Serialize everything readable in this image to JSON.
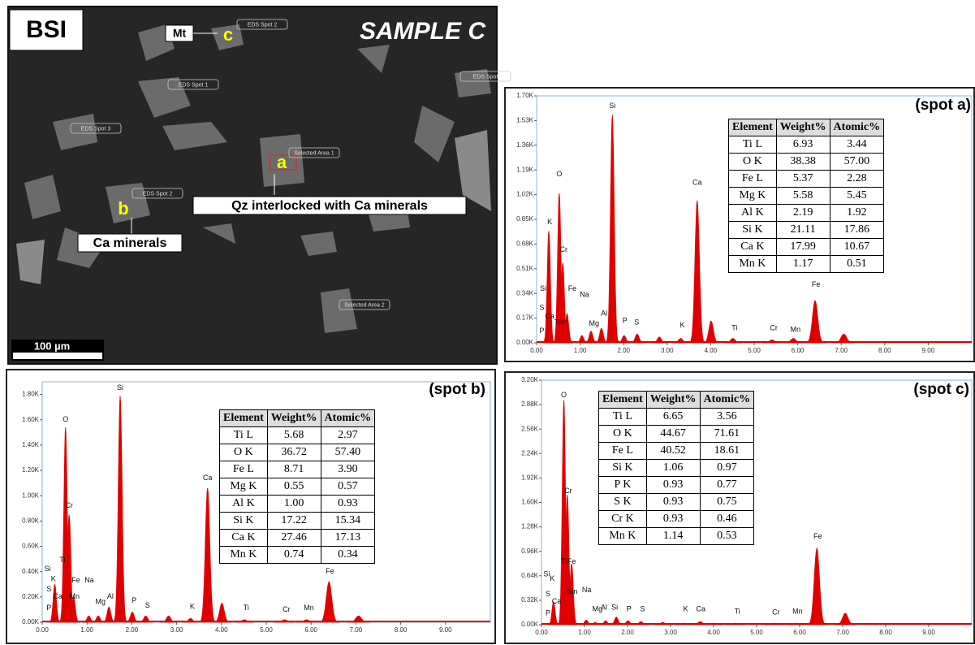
{
  "image": {
    "label": "BSI",
    "sample": "SAMPLE C",
    "mt": "Mt",
    "spot_a": "a",
    "spot_b": "b",
    "spot_c": "c",
    "desc_a": "Qz interlocked with Ca minerals",
    "desc_b": "Ca minerals",
    "scale_bar": "100 µm",
    "tags": [
      "EDS Spot 2",
      "EDS Spot 1",
      "EDS Spot 3",
      "Selected Area 1",
      "EDS Spot 2",
      "Selected Area 2",
      "EDS Spot"
    ]
  },
  "chart_data": [
    {
      "type": "spectrum",
      "title": "(spot a)",
      "color": "#e00000",
      "x": [
        0.28,
        0.52,
        0.6,
        0.7,
        1.04,
        1.25,
        1.49,
        1.74,
        2.01,
        2.31,
        2.82,
        3.31,
        3.69,
        4.01,
        4.51,
        5.41,
        5.9,
        6.4,
        7.06
      ],
      "values": [
        0.77,
        1.03,
        0.55,
        0.2,
        0.05,
        0.08,
        0.1,
        1.57,
        0.05,
        0.06,
        0.04,
        0.03,
        0.98,
        0.15,
        0.03,
        0.02,
        0.03,
        0.29,
        0.06
      ],
      "peak_labels": [
        "Si",
        "O",
        "Ca",
        "K",
        "Cr",
        "Si",
        "Fe",
        "Na",
        "Mg",
        "Al",
        "P",
        "S",
        "K",
        "Ti",
        "Cr",
        "Mn",
        "Fe",
        "S",
        "Ca",
        "Ti",
        "P",
        "Mn"
      ],
      "xlim": [
        0,
        10
      ],
      "ylim": [
        0,
        1.7
      ],
      "xticks": [
        {
          "value": 0,
          "label": "0.00"
        },
        {
          "value": 1,
          "label": "1.00"
        },
        {
          "value": 2,
          "label": "2.00"
        },
        {
          "value": 3,
          "label": "3.00"
        },
        {
          "value": 4,
          "label": "4.00"
        },
        {
          "value": 5,
          "label": "5.00"
        },
        {
          "value": 6,
          "label": "6.00"
        },
        {
          "value": 7,
          "label": "7.00"
        },
        {
          "value": 8,
          "label": "8.00"
        },
        {
          "value": 9,
          "label": "9.00"
        }
      ],
      "yticks": [
        {
          "value": 0,
          "label": "0.00K"
        },
        {
          "value": 0.17,
          "label": "0.17K"
        },
        {
          "value": 0.34,
          "label": "0.34K"
        },
        {
          "value": 0.51,
          "label": "0.51K"
        },
        {
          "value": 0.68,
          "label": "0.68K"
        },
        {
          "value": 0.85,
          "label": "0.85K"
        },
        {
          "value": 1.02,
          "label": "1.02K"
        },
        {
          "value": 1.19,
          "label": "1.19K"
        },
        {
          "value": 1.36,
          "label": "1.36K"
        },
        {
          "value": 1.53,
          "label": "1.53K"
        },
        {
          "value": 1.7,
          "label": "1.70K"
        }
      ],
      "table": {
        "header": [
          "Element",
          "Weight%",
          "Atomic%"
        ],
        "rows": [
          [
            "Ti L",
            "6.93",
            "3.44"
          ],
          [
            "O K",
            "38.38",
            "57.00"
          ],
          [
            "Fe L",
            "5.37",
            "2.28"
          ],
          [
            "Mg K",
            "5.58",
            "5.45"
          ],
          [
            "Al K",
            "2.19",
            "1.92"
          ],
          [
            "Si K",
            "21.11",
            "17.86"
          ],
          [
            "Ca K",
            "17.99",
            "10.67"
          ],
          [
            "Mn K",
            "1.17",
            "0.51"
          ]
        ]
      }
    },
    {
      "type": "spectrum",
      "title": "(spot b)",
      "color": "#e00000",
      "x": [
        0.28,
        0.52,
        0.6,
        0.7,
        1.04,
        1.25,
        1.49,
        1.74,
        2.01,
        2.31,
        2.82,
        3.31,
        3.69,
        4.01,
        4.51,
        5.41,
        5.9,
        6.4,
        7.06
      ],
      "values": [
        0.3,
        1.54,
        0.85,
        0.2,
        0.05,
        0.05,
        0.12,
        1.79,
        0.08,
        0.05,
        0.05,
        0.03,
        1.06,
        0.15,
        0.02,
        0.02,
        0.02,
        0.32,
        0.05
      ],
      "peak_labels": [
        "Si",
        "O",
        "Ca",
        "Cr",
        "Fe",
        "Si",
        "K",
        "Ti",
        "S",
        "Ca",
        "Fe",
        "Mn",
        "P",
        "Na",
        "Mg",
        "Al",
        "P",
        "S",
        "K",
        "Ti",
        "Cr",
        "Mn"
      ],
      "xlim": [
        0,
        10
      ],
      "ylim": [
        0,
        1.9
      ],
      "xticks": [
        {
          "value": 0,
          "label": "0.00"
        },
        {
          "value": 1,
          "label": "1.00"
        },
        {
          "value": 2,
          "label": "2.00"
        },
        {
          "value": 3,
          "label": "3.00"
        },
        {
          "value": 4,
          "label": "4.00"
        },
        {
          "value": 5,
          "label": "5.00"
        },
        {
          "value": 6,
          "label": "6.00"
        },
        {
          "value": 7,
          "label": "7.00"
        },
        {
          "value": 8,
          "label": "8.00"
        },
        {
          "value": 9,
          "label": "9.00"
        }
      ],
      "yticks": [
        {
          "value": 0,
          "label": "0.00K"
        },
        {
          "value": 0.2,
          "label": "0.20K"
        },
        {
          "value": 0.4,
          "label": "0.40K"
        },
        {
          "value": 0.6,
          "label": "0.60K"
        },
        {
          "value": 0.8,
          "label": "0.80K"
        },
        {
          "value": 1.0,
          "label": "1.00K"
        },
        {
          "value": 1.2,
          "label": "1.20K"
        },
        {
          "value": 1.4,
          "label": "1.40K"
        },
        {
          "value": 1.6,
          "label": "1.60K"
        },
        {
          "value": 1.8,
          "label": "1.80K"
        }
      ],
      "table": {
        "header": [
          "Element",
          "Weight%",
          "Atomic%"
        ],
        "rows": [
          [
            "Ti L",
            "5.68",
            "2.97"
          ],
          [
            "O K",
            "36.72",
            "57.40"
          ],
          [
            "Fe L",
            "8.71",
            "3.90"
          ],
          [
            "Mg K",
            "0.55",
            "0.57"
          ],
          [
            "Al K",
            "1.00",
            "0.93"
          ],
          [
            "Si K",
            "17.22",
            "15.34"
          ],
          [
            "Ca K",
            "27.46",
            "17.13"
          ],
          [
            "Mn K",
            "0.74",
            "0.34"
          ]
        ]
      }
    },
    {
      "type": "spectrum",
      "title": "(spot c)",
      "color": "#e00000",
      "x": [
        0.28,
        0.52,
        0.6,
        0.7,
        1.04,
        1.25,
        1.49,
        1.74,
        2.01,
        2.31,
        2.82,
        3.31,
        3.69,
        4.01,
        4.51,
        5.41,
        5.9,
        6.4,
        7.06
      ],
      "values": [
        0.3,
        2.94,
        1.7,
        0.8,
        0.06,
        0.03,
        0.05,
        0.1,
        0.05,
        0.04,
        0.03,
        0.02,
        0.04,
        0.02,
        0.02,
        0.02,
        0.02,
        1.0,
        0.15
      ],
      "peak_labels": [
        "O",
        "Cr",
        "Fe",
        "Si",
        "K",
        "Ti",
        "Fe",
        "S",
        "Ca",
        "Mn",
        "P",
        "Na",
        "Mg",
        "Al",
        "Si",
        "P",
        "S",
        "K",
        "Ca",
        "Ti",
        "Cr",
        "Mn"
      ],
      "xlim": [
        0,
        10
      ],
      "ylim": [
        0,
        3.2
      ],
      "xticks": [
        {
          "value": 0,
          "label": "0.00"
        },
        {
          "value": 1,
          "label": "1.00"
        },
        {
          "value": 2,
          "label": "2.00"
        },
        {
          "value": 3,
          "label": "3.00"
        },
        {
          "value": 4,
          "label": "4.00"
        },
        {
          "value": 5,
          "label": "5.00"
        },
        {
          "value": 6,
          "label": "6.00"
        },
        {
          "value": 7,
          "label": "7.00"
        },
        {
          "value": 8,
          "label": "8.00"
        },
        {
          "value": 9,
          "label": "9.00"
        }
      ],
      "yticks": [
        {
          "value": 0,
          "label": "0.00K"
        },
        {
          "value": 0.32,
          "label": "0.32K"
        },
        {
          "value": 0.64,
          "label": "0.64K"
        },
        {
          "value": 0.96,
          "label": "0.96K"
        },
        {
          "value": 1.28,
          "label": "1.28K"
        },
        {
          "value": 1.6,
          "label": "1.60K"
        },
        {
          "value": 1.92,
          "label": "1.92K"
        },
        {
          "value": 2.24,
          "label": "2.24K"
        },
        {
          "value": 2.56,
          "label": "2.56K"
        },
        {
          "value": 2.88,
          "label": "2.88K"
        },
        {
          "value": 3.2,
          "label": "3.20K"
        }
      ],
      "table": {
        "header": [
          "Element",
          "Weight%",
          "Atomic%"
        ],
        "rows": [
          [
            "Ti L",
            "6.65",
            "3.56"
          ],
          [
            "O K",
            "44.67",
            "71.61"
          ],
          [
            "Fe L",
            "40.52",
            "18.61"
          ],
          [
            "Si K",
            "1.06",
            "0.97"
          ],
          [
            "P K",
            "0.93",
            "0.77"
          ],
          [
            "S K",
            "0.93",
            "0.75"
          ],
          [
            "Cr K",
            "0.93",
            "0.46"
          ],
          [
            "Mn K",
            "1.14",
            "0.53"
          ]
        ]
      }
    }
  ]
}
